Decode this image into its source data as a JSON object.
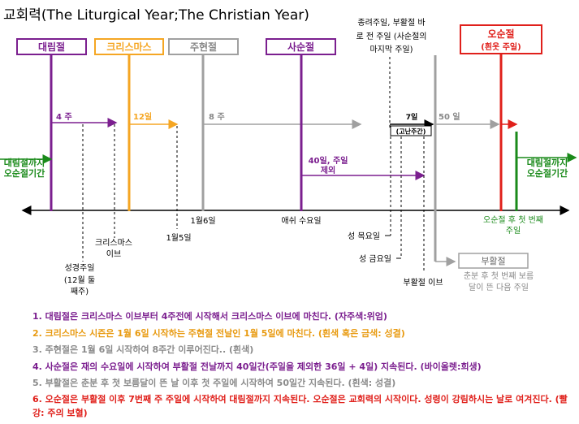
{
  "title": "교회력(The Liturgical Year;The Christian Year)",
  "colors": {
    "advent": "#7B1F8F",
    "christmas": "#F5A623",
    "epiphany": "#A0A0A0",
    "lent": "#7B1F8F",
    "easter": "#9B9B9B",
    "pentecost": "#E0201B",
    "green": "#1A8A1A",
    "black": "#000000"
  },
  "seasons": {
    "advent": "대림절",
    "christmas": "크리스마스",
    "epiphany": "주현절",
    "lent": "사순절",
    "pentecost_title": "오순절",
    "pentecost_sub": "(흰옷 주일)",
    "easter": "부활절"
  },
  "holy_week_note": [
    "종려주일, 부활절 바",
    "로 전 주일 (사순절의",
    "마지막 주일)"
  ],
  "durations": {
    "advent": "4 주",
    "christmas": "12일",
    "epiphany": "8 주",
    "lent": [
      "40일, 주일",
      "제외"
    ],
    "passion": "7일",
    "passion_sub": "(고난주간)",
    "easter": "50 일"
  },
  "side_labels": {
    "left": [
      "대림절까지",
      "오순절기간"
    ],
    "right": [
      "대림절까지",
      "오순절기간"
    ]
  },
  "dates": {
    "jan6": "1월6일",
    "jan5": "1월5일",
    "ash_wed": "애쉬 수요일",
    "christmas_eve": [
      "크리스마스",
      "이브"
    ],
    "bible_sunday": [
      "성경주일",
      "(12월 둘",
      "째주)"
    ],
    "pentecost_sunday": [
      "오순절 후 첫 번째",
      "주일"
    ],
    "maundy_thu": "성 목요일",
    "good_fri": "성 금요일",
    "easter_eve": "부활절 이브",
    "easter_def": [
      "춘분 후 첫 번째 보름",
      "달이 뜬 다음 주일"
    ]
  },
  "notes": [
    "1. 대림절은 크리스마스 이브부터 4주전에 시작해서 크리스마스 이브에 마친다. (자주색:위엄)",
    "2. 크리스마스 시즌은 1월 6일 시작하는 주현절 전날인 1월 5일에 마친다. (흰색 혹은 금색: 성결)",
    "3. 주현절은 1월 6일 시작하여 8주간 이루어진다.. (흰색)",
    "4. 사순절은 재의 수요일에 시작하여 부활절 전날까지 40일간(주일을 제외한 36일 + 4일) 지속된다. (바이올렛:희생)",
    "5. 부활절은 춘분 후 첫 보름달이 뜬 날 이후 첫 주일에 시작하여 50일간 지속된다. (흰색: 성결)",
    "6. 오순절은 부활절 이후 7번째 주 주일에 시작하여 대림절까지 지속된다. 오순절은 교회력의 시작이다. 성령이 강림하시는 날로 여겨진다. (빨강: 주의 보혈)"
  ]
}
